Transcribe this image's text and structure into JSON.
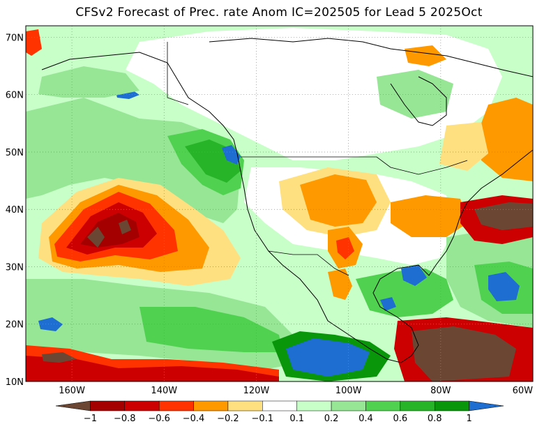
{
  "title": "CFSv2 Forecast of Prec. rate Anom IC=202505 for Lead 5 2025Oct",
  "map": {
    "lon_range": [
      -170,
      -60
    ],
    "lat_range": [
      10,
      72
    ],
    "lon_ticks": [
      {
        "lon": -160,
        "label": "160W"
      },
      {
        "lon": -140,
        "label": "140W"
      },
      {
        "lon": -120,
        "label": "120W"
      },
      {
        "lon": -100,
        "label": "100W"
      },
      {
        "lon": -80,
        "label": "80W"
      },
      {
        "lon": -60,
        "label": "60W"
      }
    ],
    "lat_ticks": [
      {
        "lat": 10,
        "label": "10N"
      },
      {
        "lat": 20,
        "label": "20N"
      },
      {
        "lat": 30,
        "label": "30N"
      },
      {
        "lat": 40,
        "label": "40N"
      },
      {
        "lat": 50,
        "label": "50N"
      },
      {
        "lat": 60,
        "label": "60N"
      },
      {
        "lat": 70,
        "label": "70N"
      }
    ],
    "grid": "dotted"
  },
  "legend": {
    "labels": [
      "−1",
      "−0.8",
      "−0.6",
      "−0.4",
      "−0.2",
      "−0.1",
      "0.1",
      "0.2",
      "0.4",
      "0.6",
      "0.8",
      "1"
    ],
    "colors": [
      "#6b4733",
      "#a50000",
      "#cc0000",
      "#ff3300",
      "#ff9900",
      "#ffe080",
      "#ffffff",
      "#c8ffc8",
      "#96e696",
      "#50d250",
      "#28b428",
      "#0a960a",
      "#1e6ed2"
    ]
  },
  "colors": {
    "dry_extreme": "#6b4733",
    "dry_strong": "#a50000",
    "dry": "#cc0000",
    "dry_mod": "#ff3300",
    "dry_light": "#ff9900",
    "dry_weak": "#ffe080",
    "neutral": "#ffffff",
    "wet_weak": "#c8ffc8",
    "wet_light": "#96e696",
    "wet_mod": "#50d250",
    "wet": "#28b428",
    "wet_strong": "#0a960a",
    "wet_extreme": "#1e6ed2"
  }
}
